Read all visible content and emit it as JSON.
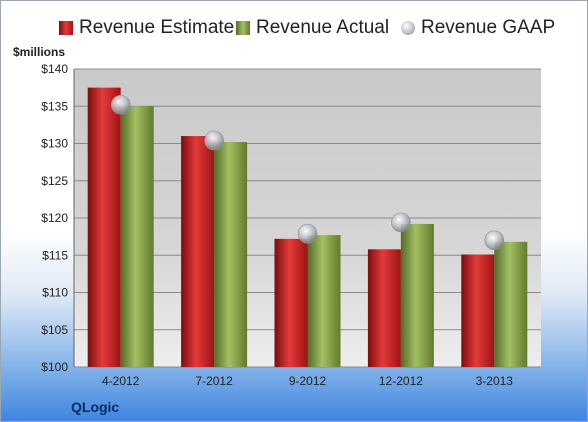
{
  "chart_data": {
    "type": "bar",
    "ylabel": "$millions",
    "ylim": [
      100,
      140
    ],
    "yticks": [
      "$100",
      "$105",
      "$110",
      "$115",
      "$120",
      "$125",
      "$130",
      "$135",
      "$140"
    ],
    "categories": [
      "4-2012",
      "7-2012",
      "9-2012",
      "12-2012",
      "3-2013"
    ],
    "series": [
      {
        "name": "Revenue Estimate",
        "values": [
          137.5,
          131.0,
          117.2,
          115.8,
          115.1
        ],
        "color": "#cc1f1f"
      },
      {
        "name": "Revenue Actual",
        "values": [
          135.0,
          130.2,
          117.7,
          119.2,
          116.8
        ],
        "color": "#8aa84a"
      }
    ],
    "gaap": {
      "name": "Revenue GAAP",
      "values": [
        135.2,
        130.4,
        117.9,
        119.4,
        117.0
      ],
      "color": "#b8bcc2"
    },
    "grid": true,
    "legend": "top"
  },
  "footer": {
    "company": "QLogic"
  }
}
